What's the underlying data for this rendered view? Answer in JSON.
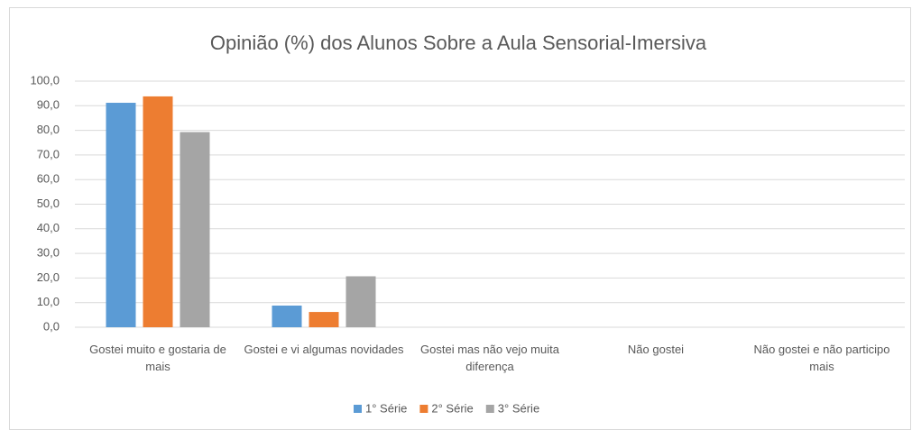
{
  "chart_data": {
    "type": "bar",
    "title": "Opinião (%) dos Alunos Sobre a Aula Sensorial-Imersiva",
    "categories": [
      "Gostei muito e gostaria de mais",
      "Gostei e vi algumas novidades",
      "Gostei mas não vejo muita diferença",
      "Não gostei",
      "Não gostei e não participo mais"
    ],
    "series": [
      {
        "name": "1° Série",
        "color": "#5b9bd5",
        "values": [
          91.2,
          8.8,
          0,
          0,
          0
        ]
      },
      {
        "name": "2° Série",
        "color": "#ed7d31",
        "values": [
          93.8,
          6.2,
          0,
          0,
          0
        ]
      },
      {
        "name": "3° Série",
        "color": "#a5a5a5",
        "values": [
          79.3,
          20.7,
          0,
          0,
          0
        ]
      }
    ],
    "ylim": [
      0,
      100
    ],
    "yticks": [
      {
        "value": 0,
        "label": "0,0"
      },
      {
        "value": 10,
        "label": "10,0"
      },
      {
        "value": 20,
        "label": "20,0"
      },
      {
        "value": 30,
        "label": "30,0"
      },
      {
        "value": 40,
        "label": "40,0"
      },
      {
        "value": 50,
        "label": "50,0"
      },
      {
        "value": 60,
        "label": "60,0"
      },
      {
        "value": 70,
        "label": "70,0"
      },
      {
        "value": 80,
        "label": "80,0"
      },
      {
        "value": 90,
        "label": "90,0"
      },
      {
        "value": 100,
        "label": "100,0"
      }
    ],
    "grid": true,
    "legend": "bottom"
  }
}
